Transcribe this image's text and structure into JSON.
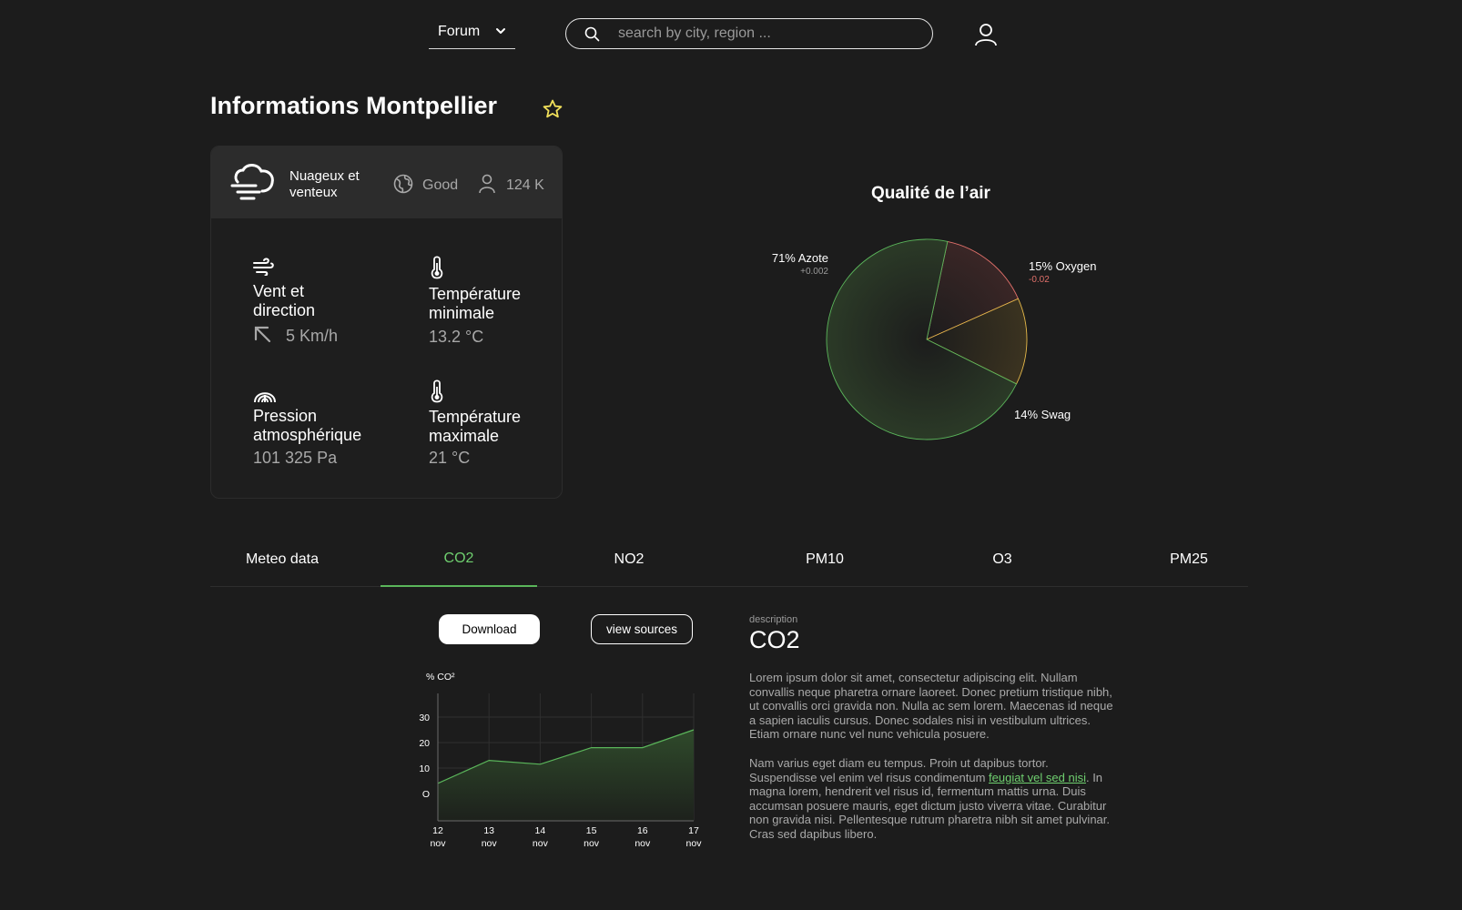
{
  "header": {
    "forum_label": "Forum",
    "search_placeholder": "search by city, region ..."
  },
  "page_title": "Informations Montpellier",
  "weather_card": {
    "condition": "Nuageux et venteux",
    "air_status": "Good",
    "population": "124 K",
    "metrics": [
      {
        "label": "Vent et direction",
        "value": "5 Km/h"
      },
      {
        "label": "Température minimale",
        "value": "13.2 °C"
      },
      {
        "label": "Pression atmosphérique",
        "value": "101 325 Pa"
      },
      {
        "label": "Température maximale",
        "value": "21 °C"
      }
    ]
  },
  "air_quality": {
    "title": "Qualité de l’air",
    "slices": [
      {
        "label": "71% Azote",
        "percent": 71,
        "delta": "+0.002",
        "color": "#5ab55a"
      },
      {
        "label": "15% Oxygen",
        "percent": 15,
        "delta": "-0.02",
        "color": "#e0706a"
      },
      {
        "label": "14% Swag",
        "percent": 14,
        "delta": "",
        "color": "#e6b94a"
      }
    ]
  },
  "tabs": [
    "Meteo data",
    "CO2",
    "NO2",
    "PM10",
    "O3",
    "PM25"
  ],
  "active_tab": "CO2",
  "actions": {
    "download": "Download",
    "view_sources": "view sources"
  },
  "description": {
    "caption": "description",
    "title": "CO2",
    "paragraph1": "Lorem ipsum dolor sit amet, consectetur adipiscing elit. Nullam convallis neque pharetra ornare laoreet. Donec pretium tristique nibh, ut convallis orci gravida non. Nulla ac sem lorem. Maecenas id neque a sapien iaculis cursus. Donec sodales nisi in vestibulum ultrices. Etiam ornare nunc vel nunc vehicula posuere.",
    "paragraph2_before": "Nam varius eget diam eu tempus. Proin ut dapibus tortor. Suspendisse vel enim vel risus condimentum ",
    "paragraph2_link": "feugiat vel sed nisi",
    "paragraph2_after": ". In magna lorem, hendrerit vel risus id, fermentum mattis urna. Duis accumsan posuere mauris, eget dictum justo viverra vitae. Curabitur non gravida nisi. Pellentesque rutrum pharetra nibh sit amet pulvinar. Cras sed dapibus libero."
  },
  "chart_data": [
    {
      "type": "pie",
      "title": "Qualité de l’air",
      "categories": [
        "Azote",
        "Oxygen",
        "Swag"
      ],
      "values": [
        71,
        15,
        14
      ],
      "labels": [
        "71% Azote",
        "15% Oxygen",
        "14% Swag"
      ]
    },
    {
      "type": "area",
      "ylabel": "% CO²",
      "categories": [
        "12 nov",
        "13 nov",
        "14 nov",
        "15 nov",
        "16 nov",
        "17 nov"
      ],
      "x_tick_day": [
        "12",
        "13",
        "14",
        "15",
        "16",
        "17"
      ],
      "x_tick_month": [
        "nov",
        "nov",
        "nov",
        "nov",
        "nov",
        "nov"
      ],
      "values": [
        4,
        13,
        11.5,
        18,
        18,
        25
      ],
      "ylim": [
        -10,
        40
      ],
      "yticks": [
        0,
        10,
        20,
        30
      ],
      "ytick_labels": [
        "O",
        "10",
        "20",
        "30"
      ],
      "grid": true,
      "color": "#5ab55a"
    }
  ]
}
